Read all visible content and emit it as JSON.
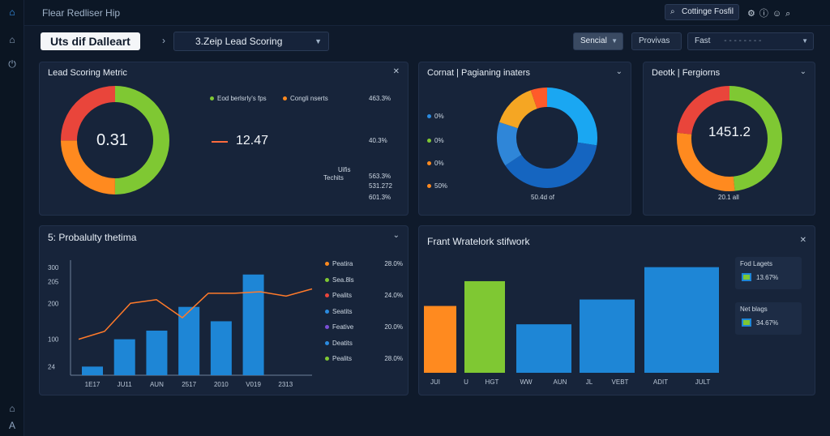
{
  "app": {
    "title": "Flear Redliser Hip"
  },
  "topbar": {
    "search_label": "Cottinge Fosfil"
  },
  "breadcrumb": {
    "title": "Uts dif Dalleart",
    "dropdown": "3.Zeip Lead Scoring"
  },
  "filters": {
    "sencial": "Sencial",
    "provivas": "Provivas",
    "fast": "Fast",
    "fast_value": "- - - - - - - -"
  },
  "panel_lead": {
    "title": "Lead Scoring Metric",
    "donut_value": "0.31",
    "legend1": "Eod berlsrly's fps",
    "legend2": "Congli nserts",
    "metric_value": "12.47",
    "right_values": [
      "463.3%",
      "40.3%",
      "563.3%",
      "531.272",
      "601.3%"
    ],
    "units_label": "Uifis",
    "teches_label": "Techits",
    "colors": [
      "#7fc833",
      "#ff8a1f",
      "#e9453b"
    ]
  },
  "panel_cornat": {
    "title": "Cornat  |  Pagianing inaters",
    "legend": [
      {
        "label": "0%",
        "color": "#2b8be0"
      },
      {
        "label": "0%",
        "color": "#7fc833"
      },
      {
        "label": "0%",
        "color": "#ff8a1f"
      },
      {
        "label": "50%",
        "color": "#ff8a1f"
      }
    ],
    "footer": "50.4d of"
  },
  "panel_deotk": {
    "title": "Deotk  |  Fergiorns",
    "donut_value": "1451.2",
    "footer": "20.1 all"
  },
  "panel_prob": {
    "title": "5: Probalulty thetima",
    "legend": [
      {
        "label": "Peatira",
        "value": "28.0%",
        "color": "#ff8a1f"
      },
      {
        "label": "Sea.8ls",
        "value": "",
        "color": "#7fc833"
      },
      {
        "label": "Pealits",
        "value": "24.0%",
        "color": "#e9453b"
      },
      {
        "label": "Seatits",
        "value": "",
        "color": "#2b8be0"
      },
      {
        "label": "Feative",
        "value": "20.0%",
        "color": "#7b4fd6"
      },
      {
        "label": "Deatits",
        "value": "",
        "color": "#2b8be0"
      },
      {
        "label": "Pealits",
        "value": "28.0%",
        "color": "#7fc833"
      }
    ]
  },
  "panel_frant": {
    "title": "Frant Wratelork stifwork",
    "legend": [
      {
        "label": "Fod Lagets",
        "value": "13.67%",
        "color": "#7fc833"
      },
      {
        "label": "Net blags",
        "value": "34.67%",
        "color": "#7fc833"
      }
    ]
  },
  "chart_data": [
    {
      "type": "bar",
      "title": "5: Probalulty thetima",
      "categories": [
        "1E17",
        "JU11",
        "AUN",
        "2517",
        "2010",
        "V019",
        "2313"
      ],
      "values": [
        24,
        100,
        124,
        190,
        150,
        280,
        null
      ],
      "line": [
        100,
        122,
        200,
        210,
        160,
        228,
        228,
        232,
        220,
        240
      ],
      "yticks": [
        "24",
        "100",
        "200",
        "205",
        "300"
      ],
      "ylim": [
        0,
        320
      ],
      "grid": false
    },
    {
      "type": "bar",
      "title": "Frant Wratelork stifwork",
      "categories": [
        "JUI",
        "U",
        "HGT",
        "WW",
        "AUN",
        "JL",
        "VEBT",
        "ADIT",
        "JULT"
      ],
      "series": [
        {
          "values": [
            62,
            85,
            null,
            45,
            null,
            68,
            null,
            98,
            null
          ],
          "colors": [
            "#ff8a1f",
            "#7fc833",
            "#1e86d6",
            "#1e86d6",
            "#1e86d6",
            "#1e86d6",
            "#1e86d6",
            "#1e86d6",
            "#1e86d6"
          ]
        }
      ],
      "ylim": [
        0,
        100
      ]
    }
  ]
}
